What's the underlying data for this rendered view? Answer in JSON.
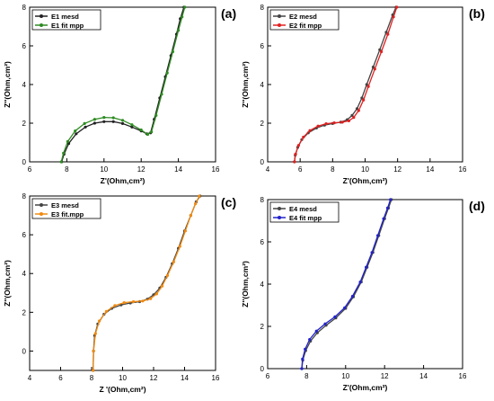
{
  "chart_data": [
    {
      "panel_label": "(a)",
      "type": "line",
      "xlabel": "Z'(Ohm,cm²)",
      "ylabel": "Z''(Ohm,cm²)",
      "xlim": [
        6,
        16
      ],
      "ylim": [
        0,
        8
      ],
      "xticks": [
        6,
        8,
        10,
        12,
        14,
        16
      ],
      "yticks": [
        0,
        2,
        4,
        6,
        8
      ],
      "grid": false,
      "legend": "top-left",
      "series": [
        {
          "name": "E1 mesd",
          "color": "#222222",
          "marker": "circle",
          "x": [
            7.72,
            7.85,
            8.1,
            8.5,
            9.0,
            9.5,
            10.0,
            10.5,
            11.0,
            11.5,
            12.0,
            12.3,
            12.5,
            12.7,
            13.0,
            13.3,
            13.6,
            13.9,
            14.1,
            14.3
          ],
          "y": [
            0.0,
            0.4,
            0.95,
            1.45,
            1.8,
            2.0,
            2.08,
            2.08,
            1.98,
            1.8,
            1.6,
            1.45,
            1.5,
            2.2,
            3.3,
            4.4,
            5.5,
            6.6,
            7.4,
            8.0
          ]
        },
        {
          "name": "E1 fit mpp",
          "color": "#2e8b22",
          "marker": "circle",
          "x": [
            7.7,
            7.82,
            8.05,
            8.45,
            8.95,
            9.5,
            10.0,
            10.5,
            11.0,
            11.5,
            12.0,
            12.35,
            12.55,
            12.8,
            13.1,
            13.4,
            13.7,
            14.0,
            14.2,
            14.35
          ],
          "y": [
            0.0,
            0.45,
            1.05,
            1.6,
            1.98,
            2.2,
            2.3,
            2.28,
            2.15,
            1.92,
            1.65,
            1.42,
            1.55,
            2.4,
            3.5,
            4.6,
            5.7,
            6.8,
            7.5,
            8.0
          ]
        }
      ]
    },
    {
      "panel_label": "(b)",
      "type": "line",
      "xlabel": "Z'(Ohm,cm²)",
      "ylabel": "Z''(Ohm,cm²)",
      "xlim": [
        4,
        16
      ],
      "ylim": [
        0,
        8
      ],
      "xticks": [
        4,
        6,
        8,
        10,
        12,
        14,
        16
      ],
      "yticks": [
        0,
        2,
        4,
        6,
        8
      ],
      "grid": false,
      "legend": "top-left",
      "series": [
        {
          "name": "E2 mesd",
          "color": "#444444",
          "marker": "circle",
          "x": [
            5.65,
            5.7,
            5.85,
            6.1,
            6.5,
            7.0,
            7.5,
            8.0,
            8.5,
            8.9,
            9.2,
            9.5,
            9.8,
            10.1,
            10.5,
            10.9,
            11.3,
            11.7,
            11.9
          ],
          "y": [
            0.0,
            0.35,
            0.75,
            1.15,
            1.5,
            1.75,
            1.9,
            1.98,
            2.05,
            2.18,
            2.4,
            2.75,
            3.3,
            4.0,
            4.9,
            5.8,
            6.7,
            7.6,
            8.0
          ]
        },
        {
          "name": "E2 fit mpp",
          "color": "#e02020",
          "marker": "circle",
          "x": [
            5.65,
            5.72,
            5.9,
            6.2,
            6.6,
            7.1,
            7.6,
            8.1,
            8.6,
            9.0,
            9.3,
            9.6,
            9.9,
            10.2,
            10.6,
            11.0,
            11.4,
            11.75,
            11.95
          ],
          "y": [
            0.0,
            0.4,
            0.85,
            1.28,
            1.62,
            1.85,
            1.97,
            2.02,
            2.05,
            2.12,
            2.3,
            2.65,
            3.2,
            3.9,
            4.8,
            5.7,
            6.6,
            7.5,
            8.0
          ]
        }
      ]
    },
    {
      "panel_label": "(c)",
      "type": "line",
      "xlabel": "Z '(Ohm,cm²)",
      "ylabel": "Z''(Ohm,cm²)",
      "xlim": [
        4,
        16
      ],
      "ylim": [
        -1,
        8
      ],
      "xticks": [
        4,
        6,
        8,
        10,
        12,
        14,
        16
      ],
      "yticks": [
        0,
        2,
        4,
        6,
        8
      ],
      "grid": false,
      "legend": "top-left",
      "series": [
        {
          "name": "E3 mesd",
          "color": "#444444",
          "marker": "circle",
          "x": [
            8.1,
            8.12,
            8.2,
            8.4,
            8.8,
            9.3,
            9.9,
            10.5,
            11.1,
            11.6,
            12.0,
            12.4,
            12.8,
            13.2,
            13.6,
            14.0,
            14.4,
            14.75,
            15.0
          ],
          "y": [
            -1.0,
            0.0,
            0.8,
            1.4,
            1.9,
            2.2,
            2.38,
            2.48,
            2.55,
            2.68,
            2.9,
            3.25,
            3.8,
            4.5,
            5.3,
            6.2,
            7.0,
            7.7,
            8.0
          ]
        },
        {
          "name": "E3 fit.mpp",
          "color": "#f08a10",
          "marker": "circle",
          "x": [
            8.1,
            8.13,
            8.25,
            8.5,
            8.95,
            9.5,
            10.1,
            10.7,
            11.3,
            11.8,
            12.2,
            12.55,
            12.9,
            13.3,
            13.7,
            14.05,
            14.4,
            14.7,
            14.95
          ],
          "y": [
            -1.0,
            0.0,
            0.9,
            1.55,
            2.05,
            2.35,
            2.5,
            2.55,
            2.58,
            2.7,
            2.95,
            3.35,
            3.9,
            4.6,
            5.4,
            6.2,
            7.0,
            7.6,
            8.0
          ]
        }
      ]
    },
    {
      "panel_label": "(d)",
      "type": "line",
      "xlabel": "Z'(Ohm,cm²)",
      "ylabel": "Z''(Ohm,cm²)",
      "xlim": [
        6,
        16
      ],
      "ylim": [
        0,
        8
      ],
      "xticks": [
        6,
        8,
        10,
        12,
        14,
        16
      ],
      "yticks": [
        0,
        2,
        4,
        6,
        8
      ],
      "grid": false,
      "legend": "top-left",
      "series": [
        {
          "name": "E4 mesd",
          "color": "#444444",
          "marker": "circle",
          "x": [
            7.75,
            7.8,
            7.95,
            8.2,
            8.55,
            9.0,
            9.5,
            10.0,
            10.4,
            10.8,
            11.1,
            11.4,
            11.7,
            12.0,
            12.2,
            12.35
          ],
          "y": [
            0.0,
            0.4,
            0.85,
            1.3,
            1.7,
            2.05,
            2.4,
            2.85,
            3.4,
            4.1,
            4.8,
            5.5,
            6.3,
            7.1,
            7.6,
            8.0
          ]
        },
        {
          "name": "E4 fit mpp",
          "color": "#2222cc",
          "marker": "circle",
          "x": [
            7.75,
            7.79,
            7.92,
            8.15,
            8.5,
            8.95,
            9.45,
            9.95,
            10.35,
            10.75,
            11.05,
            11.35,
            11.65,
            11.95,
            12.15,
            12.3
          ],
          "y": [
            0.0,
            0.45,
            0.92,
            1.38,
            1.78,
            2.12,
            2.45,
            2.88,
            3.42,
            4.1,
            4.8,
            5.5,
            6.3,
            7.1,
            7.6,
            8.0
          ]
        }
      ]
    }
  ]
}
